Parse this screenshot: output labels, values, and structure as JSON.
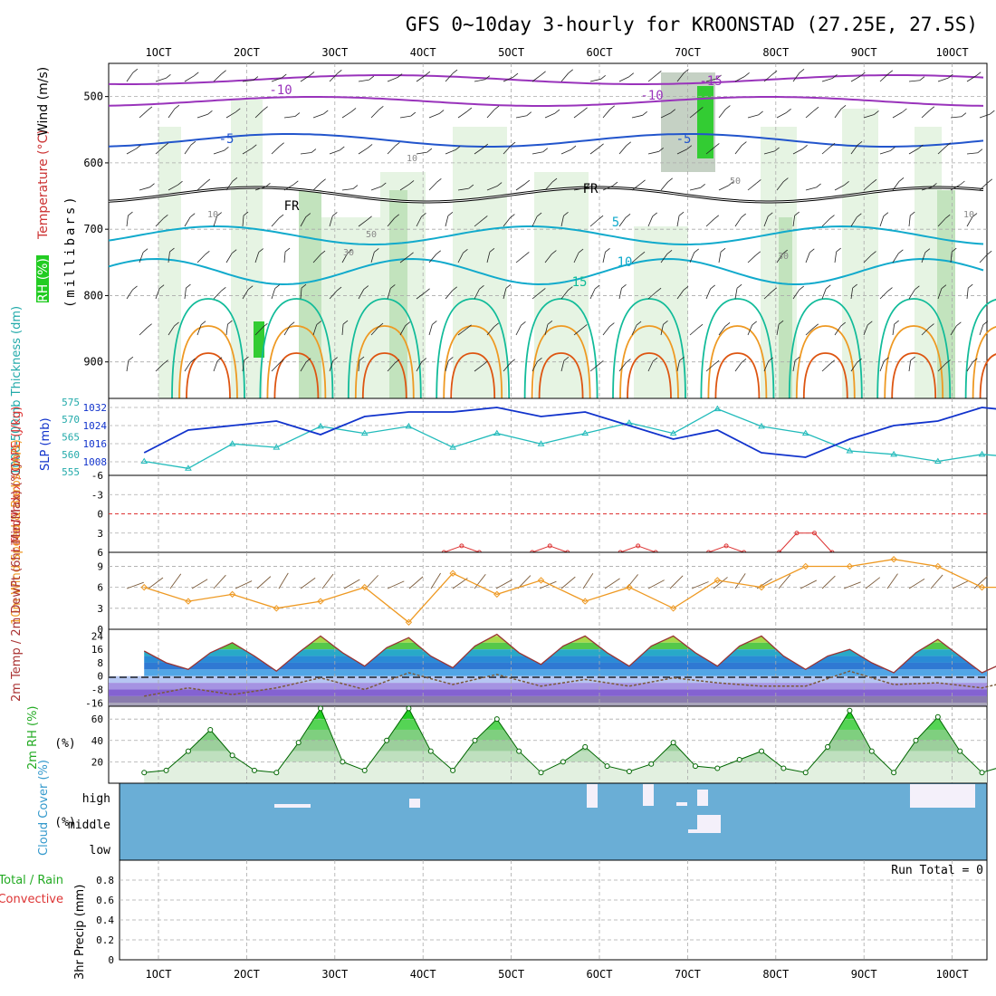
{
  "title": "GFS 0~10day 3-hourly for KROONSTAD (27.25E, 27.5S)",
  "x_labels": [
    "1OCT",
    "2OCT",
    "3OCT",
    "4OCT",
    "5OCT",
    "6OCT",
    "7OCT",
    "8OCT",
    "9OCT",
    "10OCT"
  ],
  "run_total": "Run Total = 0",
  "colors": {
    "rh_light": "#e6f4e3",
    "rh_mid": "#c2e3bd",
    "rh_grey": "#9fb29c",
    "rh_green": "#33cc33",
    "temp_purple": "#9933bb",
    "temp_blue": "#2255cc",
    "temp_cyan": "#11aacc",
    "temp_teal": "#11bb99",
    "temp_orange": "#ee9922",
    "temp_red": "#dd5511",
    "slp": "#1133cc",
    "thickness": "#22bbbb",
    "lifted": "#dd3333",
    "wind10m": "#ee9922",
    "barb": "#7a5a3a",
    "cloud": "#6aaed6"
  },
  "chart_data": [
    {
      "type": "heatmap",
      "name": "upper-air",
      "ylabel_parts": [
        "Wind (m/s)",
        "Temperature (°C)",
        "RH (%)"
      ],
      "ylabel_unit": "(millibars)",
      "y_ticks": [
        500,
        600,
        700,
        800,
        900
      ],
      "ylim": [
        955,
        450
      ],
      "temperature_labels": [
        "-15",
        "-10",
        "-10",
        "-5",
        "-5",
        "5",
        "10",
        "15",
        "FR",
        "FR"
      ],
      "rh_labels": [
        "10",
        "10",
        "50",
        "50",
        "30",
        "10",
        "30"
      ]
    },
    {
      "type": "line",
      "name": "slp-thickness",
      "ylabel_left": "1000-500mb Thickness (dm)",
      "ylabel_right": "SLP (mb)",
      "y_ticks_left": [
        555,
        560,
        565,
        570,
        575
      ],
      "y_ticks_right": [
        1008,
        1016,
        1024,
        1032
      ],
      "series": [
        {
          "name": "SLP (mb)",
          "x": [
            0,
            0.5,
            1,
            1.5,
            2,
            2.5,
            3,
            3.5,
            4,
            4.5,
            5,
            5.5,
            6,
            6.5,
            7,
            7.5,
            8,
            8.5,
            9,
            9.5,
            10
          ],
          "values": [
            1012,
            1022,
            1024,
            1026,
            1020,
            1028,
            1030,
            1030,
            1032,
            1028,
            1030,
            1024,
            1018,
            1022,
            1012,
            1010,
            1018,
            1024,
            1026,
            1032,
            1030
          ]
        },
        {
          "name": "1000-500mb Thickness (dm)",
          "x": [
            0,
            0.5,
            1,
            1.5,
            2,
            2.5,
            3,
            3.5,
            4,
            4.5,
            5,
            5.5,
            6,
            6.5,
            7,
            7.5,
            8,
            8.5,
            9,
            9.5,
            10
          ],
          "values": [
            558,
            556,
            563,
            562,
            568,
            566,
            568,
            562,
            566,
            563,
            566,
            569,
            566,
            573,
            568,
            566,
            561,
            560,
            558,
            560,
            559
          ]
        }
      ]
    },
    {
      "type": "line",
      "name": "lifted-index",
      "ylabel": "Lifted Index / CAPE (J/kg)",
      "y_ticks": [
        "-6",
        "-3",
        "0",
        "3",
        "6"
      ],
      "ylim": [
        -6,
        6
      ],
      "series": [
        {
          "name": "Lifted Index",
          "x": [
            3.4,
            3.6,
            3.8,
            4.4,
            4.6,
            4.8,
            5.4,
            5.6,
            5.8,
            6.4,
            6.6,
            6.8,
            7.2,
            7.4,
            7.6,
            7.8
          ],
          "values": [
            6,
            5,
            6,
            6,
            5,
            6,
            6,
            5,
            6,
            6,
            5,
            6,
            6,
            3,
            3,
            6
          ]
        }
      ]
    },
    {
      "type": "line",
      "name": "10m-wind",
      "ylabel": "10m Wind Speed & Barbs (m/s)",
      "y_ticks": [
        0,
        3,
        6,
        9
      ],
      "ylim": [
        0,
        11
      ],
      "series": [
        {
          "name": "Speed",
          "x": [
            0,
            0.5,
            1,
            1.5,
            2,
            2.5,
            3,
            3.5,
            4,
            4.5,
            5,
            5.5,
            6,
            6.5,
            7,
            7.5,
            8,
            8.5,
            9,
            9.5,
            10
          ],
          "values": [
            6,
            4,
            5,
            3,
            4,
            6,
            1,
            8,
            5,
            7,
            4,
            6,
            3,
            7,
            6,
            9,
            9,
            10,
            9,
            6,
            6
          ]
        }
      ]
    },
    {
      "type": "area",
      "name": "2m-temp",
      "ylabel": "2m Temp / 2m DewPt (6hr Min/Max) (°C)",
      "y_ticks": [
        24,
        16,
        8,
        0,
        -8,
        -16
      ],
      "ylim": [
        -18,
        28
      ],
      "series": [
        {
          "name": "2m Temp",
          "x": [
            0,
            0.25,
            0.5,
            0.75,
            1,
            1.25,
            1.5,
            1.75,
            2,
            2.25,
            2.5,
            2.75,
            3,
            3.25,
            3.5,
            3.75,
            4,
            4.25,
            4.5,
            4.75,
            5,
            5.25,
            5.5,
            5.75,
            6,
            6.25,
            6.5,
            6.75,
            7,
            7.25,
            7.5,
            7.75,
            8,
            8.25,
            8.5,
            8.75,
            9,
            9.25,
            9.5,
            9.75,
            10
          ],
          "values": [
            15,
            8,
            4,
            14,
            20,
            12,
            3,
            14,
            24,
            14,
            6,
            17,
            23,
            12,
            5,
            18,
            25,
            14,
            7,
            18,
            24,
            14,
            6,
            18,
            24,
            14,
            6,
            18,
            24,
            12,
            4,
            12,
            16,
            8,
            2,
            14,
            22,
            12,
            2,
            8,
            10
          ]
        },
        {
          "name": "2m DewPt",
          "x": [
            0,
            0.5,
            1,
            1.5,
            2,
            2.5,
            3,
            3.5,
            4,
            4.5,
            5,
            5.5,
            6,
            6.5,
            7,
            7.5,
            8,
            8.5,
            9,
            9.5,
            10
          ],
          "values": [
            -12,
            -7,
            -11,
            -7,
            -1,
            -8,
            2,
            -5,
            1,
            -6,
            -2,
            -6,
            -1,
            -4,
            -6,
            -6,
            3,
            -5,
            -4,
            -7,
            -1
          ]
        }
      ]
    },
    {
      "type": "area",
      "name": "2m-rh",
      "ylabel": "2m RH (%)",
      "y_ticks": [
        20,
        40,
        60
      ],
      "ylim": [
        0,
        72
      ],
      "series": [
        {
          "name": "2m RH",
          "x": [
            0,
            0.25,
            0.5,
            0.75,
            1,
            1.25,
            1.5,
            1.75,
            2,
            2.25,
            2.5,
            2.75,
            3,
            3.25,
            3.5,
            3.75,
            4,
            4.25,
            4.5,
            4.75,
            5,
            5.25,
            5.5,
            5.75,
            6,
            6.25,
            6.5,
            6.75,
            7,
            7.25,
            7.5,
            7.75,
            8,
            8.25,
            8.5,
            8.75,
            9,
            9.25,
            9.5,
            9.75,
            10
          ],
          "values": [
            10,
            12,
            30,
            50,
            26,
            12,
            10,
            38,
            70,
            20,
            12,
            40,
            70,
            30,
            12,
            40,
            60,
            30,
            10,
            20,
            34,
            16,
            11,
            18,
            38,
            16,
            14,
            22,
            30,
            14,
            10,
            34,
            68,
            30,
            10,
            40,
            62,
            30,
            10,
            16,
            46
          ]
        }
      ]
    },
    {
      "type": "heatmap",
      "name": "cloud-cover",
      "ylabel": "Cloud Cover (%)",
      "y_ticks": [
        "high",
        "middle",
        "low"
      ]
    },
    {
      "type": "bar",
      "name": "precip",
      "ylabel": "3hr Precip (mm)",
      "legend": [
        "Total / Rain",
        "Convective"
      ],
      "y_ticks": [
        0,
        0.2,
        0.4,
        0.6,
        0.8
      ],
      "ylim": [
        0,
        1
      ],
      "values": []
    }
  ]
}
